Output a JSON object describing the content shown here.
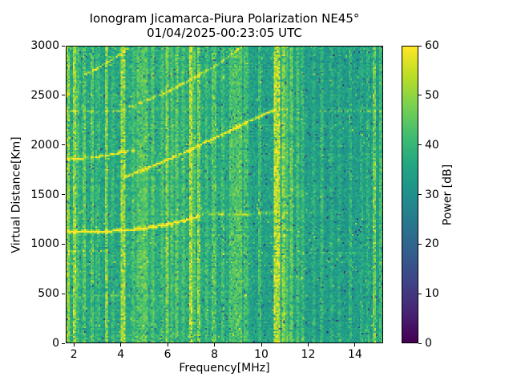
{
  "chart_data": {
    "type": "heatmap",
    "title": "Ionogram Jicamarca-Piura Polarization NE45°",
    "subtitle": "01/04/2025-00:23:05 UTC",
    "xlabel": "Frequency[MHz]",
    "ylabel": "Virtual Distance[Km]",
    "xlim": [
      1.65,
      15.2
    ],
    "ylim": [
      0,
      3000
    ],
    "xticks": [
      2,
      4,
      6,
      8,
      10,
      12,
      14
    ],
    "yticks": [
      0,
      500,
      1000,
      1500,
      2000,
      2500,
      3000
    ],
    "grid": false,
    "legend": "none",
    "colorbar": {
      "label": "Power [dB]",
      "min": 0,
      "max": 60,
      "ticks": [
        0,
        10,
        20,
        30,
        40,
        50,
        60
      ],
      "colormap": "viridis"
    },
    "noise_floor_db_profile": [
      [
        1.65,
        37.5
      ],
      [
        2.3,
        36.5
      ],
      [
        2.9,
        35.0
      ],
      [
        3.3,
        35.0
      ],
      [
        3.9,
        36.0
      ],
      [
        4.6,
        37.5
      ],
      [
        5.4,
        37.5
      ],
      [
        6.0,
        36.5
      ],
      [
        6.8,
        37.5
      ],
      [
        7.4,
        37.0
      ],
      [
        8.1,
        35.5
      ],
      [
        8.7,
        36.5
      ],
      [
        9.3,
        37.0
      ],
      [
        9.7,
        34.0
      ],
      [
        10.4,
        34.5
      ],
      [
        10.9,
        36.0
      ],
      [
        11.4,
        35.5
      ],
      [
        12.0,
        33.5
      ],
      [
        12.8,
        33.0
      ],
      [
        13.6,
        33.0
      ],
      [
        14.4,
        33.5
      ],
      [
        15.2,
        34.0
      ]
    ],
    "rfi_stripes_mhz": [
      {
        "f": 1.73,
        "amp": 13,
        "w": 0.07
      },
      {
        "f": 1.98,
        "amp": 15,
        "w": 0.07
      },
      {
        "f": 2.15,
        "amp": 6,
        "w": 0.07
      },
      {
        "f": 2.38,
        "amp": 9,
        "w": 0.07
      },
      {
        "f": 2.72,
        "amp": 9,
        "w": 0.07
      },
      {
        "f": 3.0,
        "amp": 5,
        "w": 0.1
      },
      {
        "f": 3.37,
        "amp": 15,
        "w": 0.07
      },
      {
        "f": 3.62,
        "amp": 5,
        "w": 0.07
      },
      {
        "f": 4.08,
        "amp": 16,
        "w": 0.07
      },
      {
        "f": 4.5,
        "amp": 5,
        "w": 0.07
      },
      {
        "f": 4.8,
        "amp": 7,
        "w": 0.25
      },
      {
        "f": 5.05,
        "amp": 8,
        "w": 0.12
      },
      {
        "f": 5.35,
        "amp": 7,
        "w": 0.12
      },
      {
        "f": 5.75,
        "amp": 6,
        "w": 0.07
      },
      {
        "f": 5.97,
        "amp": 13,
        "w": 0.1
      },
      {
        "f": 6.15,
        "amp": 7,
        "w": 0.07
      },
      {
        "f": 6.38,
        "amp": 9,
        "w": 0.07
      },
      {
        "f": 6.65,
        "amp": 6,
        "w": 0.07
      },
      {
        "f": 6.96,
        "amp": 17,
        "w": 0.07
      },
      {
        "f": 7.15,
        "amp": 7,
        "w": 0.07
      },
      {
        "f": 7.33,
        "amp": 13,
        "w": 0.07
      },
      {
        "f": 7.7,
        "amp": 5,
        "w": 0.07
      },
      {
        "f": 7.98,
        "amp": 9,
        "w": 0.07
      },
      {
        "f": 8.35,
        "amp": 6,
        "w": 0.07
      },
      {
        "f": 8.75,
        "amp": 7,
        "w": 0.2
      },
      {
        "f": 9.05,
        "amp": 8,
        "w": 0.2
      },
      {
        "f": 9.35,
        "amp": 6,
        "w": 0.1
      },
      {
        "f": 9.9,
        "amp": 7,
        "w": 0.07
      },
      {
        "f": 10.6,
        "amp": 21,
        "w": 0.1
      },
      {
        "f": 10.74,
        "amp": 21,
        "w": 0.07
      },
      {
        "f": 10.95,
        "amp": 15,
        "w": 0.07
      },
      {
        "f": 11.1,
        "amp": 8,
        "w": 0.07
      },
      {
        "f": 11.27,
        "amp": 11,
        "w": 0.07
      },
      {
        "f": 11.6,
        "amp": 8,
        "w": 0.07
      },
      {
        "f": 11.8,
        "amp": 7,
        "w": 0.07
      },
      {
        "f": 12.25,
        "amp": 5,
        "w": 0.07
      },
      {
        "f": 12.6,
        "amp": 7,
        "w": 0.07
      },
      {
        "f": 13.0,
        "amp": 5,
        "w": 0.07
      },
      {
        "f": 13.35,
        "amp": 4,
        "w": 0.07
      },
      {
        "f": 13.8,
        "amp": 6,
        "w": 0.07
      },
      {
        "f": 14.3,
        "amp": 4,
        "w": 0.07
      },
      {
        "f": 14.6,
        "amp": 5,
        "w": 0.07
      },
      {
        "f": 14.85,
        "amp": 14,
        "w": 0.07
      },
      {
        "f": 15.1,
        "amp": 8,
        "w": 0.07
      }
    ],
    "echo_traces_km": [
      {
        "name": "one-hop-trace",
        "points": [
          [
            1.7,
            1115
          ],
          [
            2.6,
            1120
          ],
          [
            3.6,
            1128
          ],
          [
            4.4,
            1140
          ],
          [
            5.2,
            1163
          ],
          [
            6.0,
            1197
          ],
          [
            6.7,
            1235
          ],
          [
            7.35,
            1282
          ]
        ],
        "amp": 23,
        "dash": 0.92
      },
      {
        "name": "one-hop-faint-extension",
        "points": [
          [
            7.4,
            1290
          ],
          [
            8.6,
            1300
          ],
          [
            10.6,
            1312
          ]
        ],
        "amp": 9,
        "dash": 0.45
      },
      {
        "name": "two-hop-low-trace",
        "points": [
          [
            1.68,
            1855
          ],
          [
            2.8,
            1878
          ],
          [
            3.8,
            1915
          ],
          [
            4.55,
            1950
          ]
        ],
        "amp": 13,
        "dash": 0.75,
        "bright_segment": [
          3.75,
          4.35
        ],
        "bright_extra": 9
      },
      {
        "name": "long-rising-curve",
        "points": [
          [
            4.1,
            1672
          ],
          [
            5.0,
            1755
          ],
          [
            6.0,
            1852
          ],
          [
            7.0,
            1958
          ],
          [
            8.0,
            2070
          ],
          [
            9.0,
            2185
          ],
          [
            9.9,
            2290
          ],
          [
            10.6,
            2360
          ]
        ],
        "amp": 15,
        "dash": 0.85
      },
      {
        "name": "upper-rising-curve",
        "points": [
          [
            4.35,
            2388
          ],
          [
            5.2,
            2462
          ],
          [
            6.2,
            2565
          ],
          [
            7.2,
            2690
          ],
          [
            8.2,
            2830
          ],
          [
            9.15,
            3000
          ]
        ],
        "amp": 11,
        "dash": 0.65
      },
      {
        "name": "top-left-steep-curve",
        "points": [
          [
            2.42,
            2710
          ],
          [
            3.1,
            2800
          ],
          [
            3.8,
            2895
          ],
          [
            4.35,
            3000
          ]
        ],
        "amp": 11,
        "dash": 0.7
      }
    ],
    "dashed_echo_lines_km": [
      {
        "km": 2350,
        "from": 1.68,
        "to": 4.7,
        "amp": 12,
        "density": 0.6
      },
      {
        "km": 2350,
        "from": 12.0,
        "to": 15.15,
        "amp": 11,
        "density": 0.55
      },
      {
        "km": 930,
        "from": 1.68,
        "to": 2.9,
        "amp": 9,
        "density": 0.6
      },
      {
        "km": 930,
        "from": 2.9,
        "to": 7.4,
        "amp": 7,
        "density": 0.3
      },
      {
        "km": 905,
        "from": 11.6,
        "to": 14.2,
        "amp": 7,
        "density": 0.45
      },
      {
        "km": 480,
        "from": 1.68,
        "to": 4.2,
        "amp": 7,
        "density": 0.45
      },
      {
        "km": 480,
        "from": 4.2,
        "to": 6.9,
        "amp": 6,
        "density": 0.25
      }
    ],
    "viridis_anchors": [
      [
        0,
        68,
        1,
        84
      ],
      [
        0.1,
        72,
        36,
        117
      ],
      [
        0.2,
        64,
        67,
        135
      ],
      [
        0.3,
        52,
        94,
        141
      ],
      [
        0.4,
        41,
        120,
        142
      ],
      [
        0.5,
        32,
        144,
        140
      ],
      [
        0.6,
        34,
        167,
        132
      ],
      [
        0.7,
        66,
        190,
        113
      ],
      [
        0.8,
        121,
        209,
        81
      ],
      [
        0.9,
        186,
        222,
        39
      ],
      [
        1,
        253,
        231,
        37
      ]
    ]
  }
}
